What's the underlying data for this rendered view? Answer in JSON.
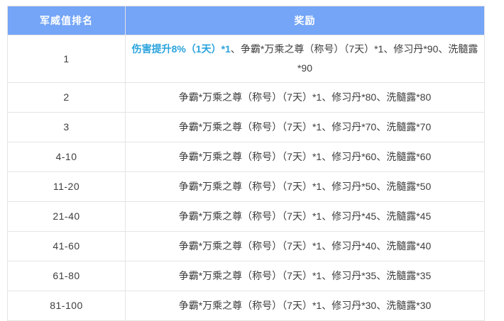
{
  "colors": {
    "header_bg": "#74a5f7",
    "header_text": "#ffffff",
    "body_text": "#3d3d3d",
    "highlight_text": "#2aa3dc",
    "border": "#e4e4e4",
    "page_bg": "#ffffff"
  },
  "table": {
    "columns": [
      {
        "label": "军威值排名"
      },
      {
        "label": "奖励"
      }
    ],
    "rows": [
      {
        "rank": "1",
        "reward_highlight": "伤害提升8%（1天）*1",
        "reward_rest": "、争霸*万乘之尊（称号）（7天）*1、修习丹*90、洗髓露*90"
      },
      {
        "rank": "2",
        "reward": "争霸*万乘之尊（称号）（7天）*1、修习丹*80、洗髓露*80"
      },
      {
        "rank": "3",
        "reward": "争霸*万乘之尊（称号）（7天）*1、修习丹*70、洗髓露*70"
      },
      {
        "rank": "4-10",
        "reward": "争霸*万乘之尊（称号）（7天）*1、修习丹*60、洗髓露*60"
      },
      {
        "rank": "11-20",
        "reward": "争霸*万乘之尊（称号）（7天）*1、修习丹*50、洗髓露*50"
      },
      {
        "rank": "21-40",
        "reward": "争霸*万乘之尊（称号）（7天）*1、修习丹*45、洗髓露*45"
      },
      {
        "rank": "41-60",
        "reward": "争霸*万乘之尊（称号）（7天）*1、修习丹*40、洗髓露*40"
      },
      {
        "rank": "61-80",
        "reward": "争霸*万乘之尊（称号）（7天）*1、修习丹*35、洗髓露*35"
      },
      {
        "rank": "81-100",
        "reward": "争霸*万乘之尊（称号）（7天）*1、修习丹*30、洗髓露*30"
      }
    ]
  }
}
